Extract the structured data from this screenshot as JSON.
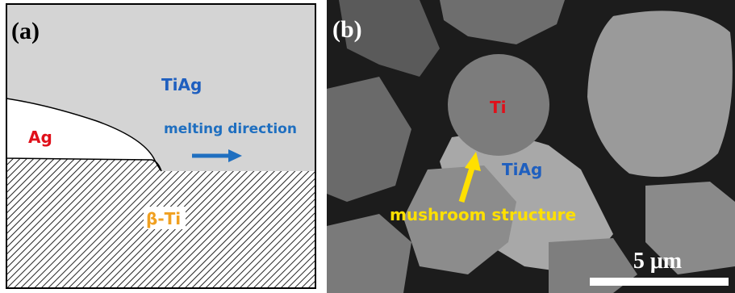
{
  "panel_a": {
    "label": "(a)",
    "top_phase": "TiAg",
    "left_phase": "Ag",
    "direction": "melting direction",
    "bottom_phase": "β-Ti"
  },
  "panel_b": {
    "label": "(b)",
    "grain": "Ti",
    "matrix": "TiAg",
    "annotation": "mushroom structure",
    "scale_bar": "5 μm"
  }
}
